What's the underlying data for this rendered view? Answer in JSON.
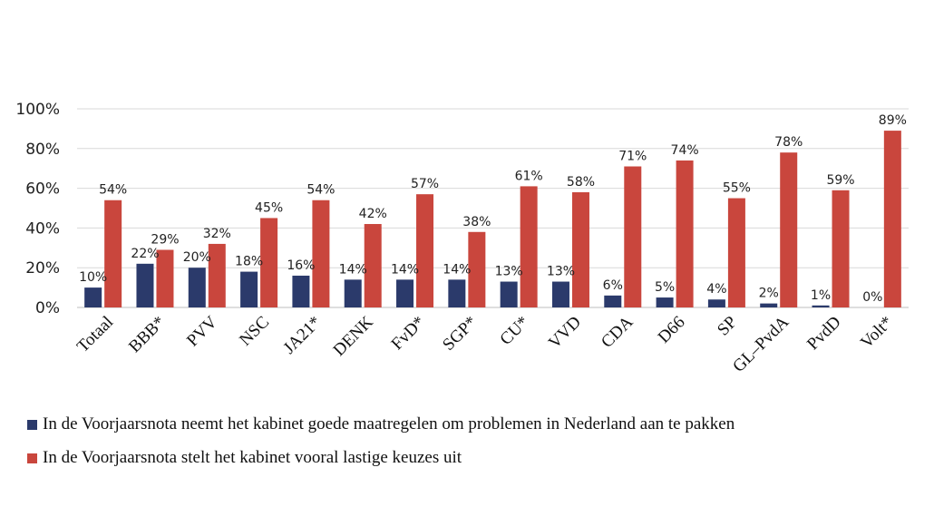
{
  "chart_data": {
    "type": "bar",
    "categories": [
      "Totaal",
      "BBB*",
      "PVV",
      "NSC",
      "JA21*",
      "DENK",
      "FvD*",
      "SGP*",
      "CU*",
      "VVD",
      "CDA",
      "D66",
      "SP",
      "GL–PvdA",
      "PvdD",
      "Volt*"
    ],
    "series": [
      {
        "name": "In de Voorjaarsnota neemt het kabinet goede maatregelen om problemen in Nederland aan te pakken",
        "color": "#2b3a6b",
        "values": [
          10,
          22,
          20,
          18,
          16,
          14,
          14,
          14,
          13,
          13,
          6,
          5,
          4,
          2,
          1,
          0
        ],
        "labels": [
          "10%",
          "22%",
          "20%",
          "18%",
          "16%",
          "14%",
          "14%",
          "14%",
          "13%",
          "13%",
          "6%",
          "5%",
          "4%",
          "2%",
          "1%",
          "0%"
        ]
      },
      {
        "name": "In de Voorjaarsnota stelt het kabinet vooral lastige keuzes uit",
        "color": "#c9463d",
        "values": [
          54,
          29,
          32,
          45,
          54,
          42,
          57,
          38,
          61,
          58,
          71,
          74,
          55,
          78,
          59,
          89
        ],
        "labels": [
          "54%",
          "29%",
          "32%",
          "45%",
          "54%",
          "42%",
          "57%",
          "38%",
          "61%",
          "58%",
          "71%",
          "74%",
          "55%",
          "78%",
          "59%",
          "89%"
        ]
      }
    ],
    "yticks": [
      "0%",
      "20%",
      "40%",
      "60%",
      "80%",
      "100%"
    ],
    "ylim": [
      0,
      100
    ],
    "grid": true,
    "legend_position": "bottom"
  }
}
